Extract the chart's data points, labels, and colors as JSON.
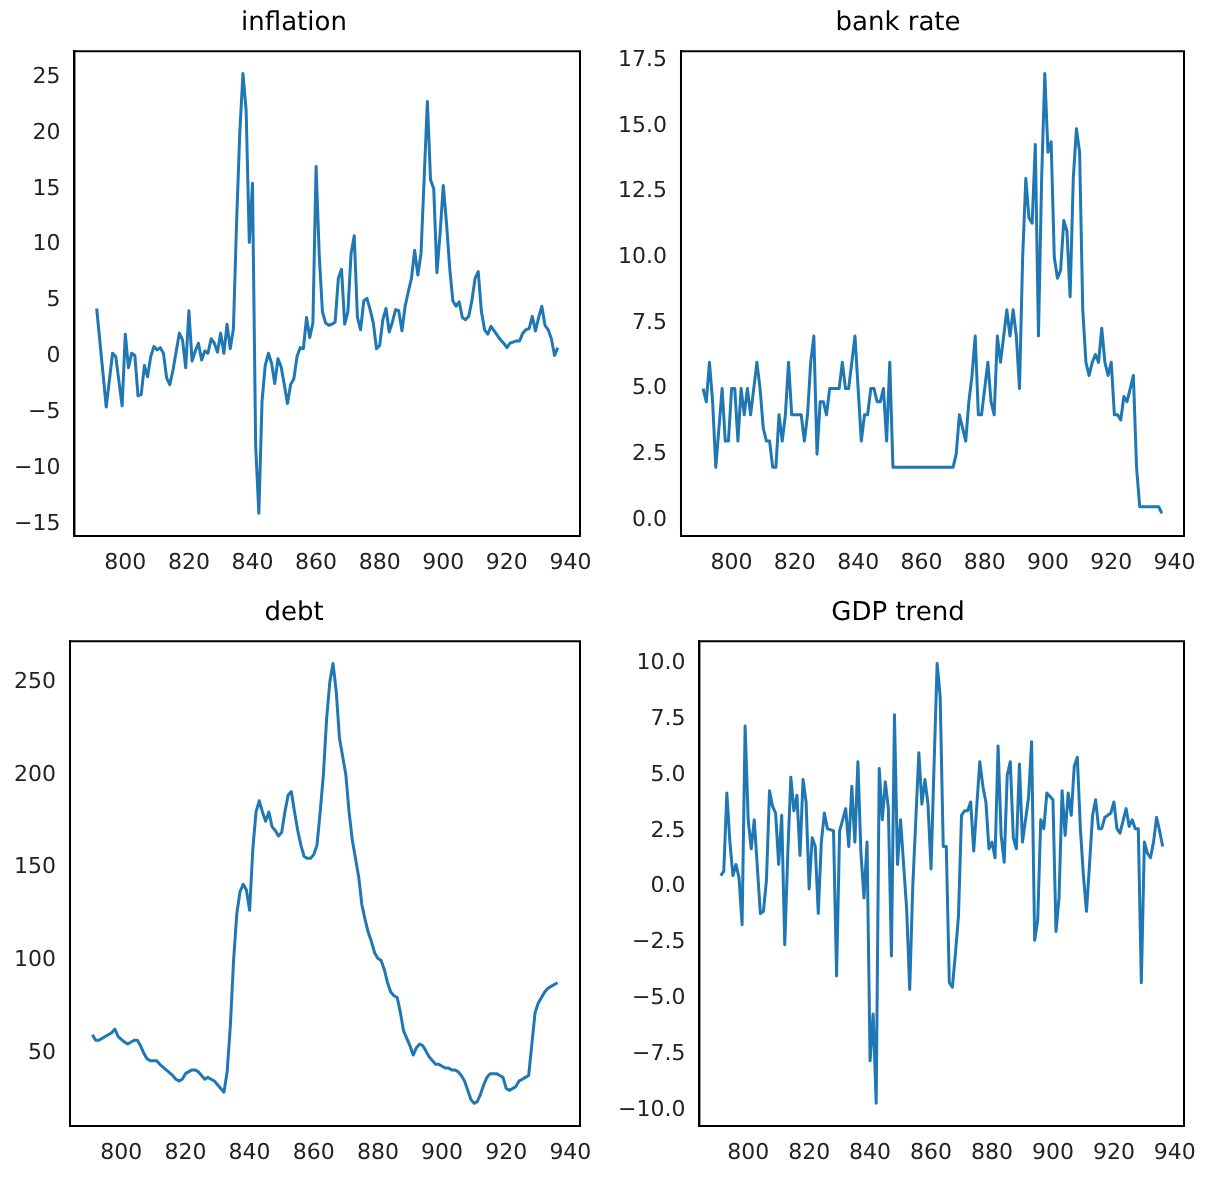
{
  "chart_data": [
    {
      "type": "line",
      "title": "inflation",
      "color": "#1f77b4",
      "xlim": [
        784,
        943
      ],
      "ylim": [
        -16,
        27.3
      ],
      "xticks": [
        800,
        820,
        840,
        860,
        880,
        900,
        920,
        940
      ],
      "yticks": [
        {
          "value": -15,
          "label": "−15"
        },
        {
          "value": -10,
          "label": "−10"
        },
        {
          "value": -5,
          "label": "−5"
        },
        0,
        5,
        10,
        15,
        20,
        25
      ],
      "x": [
        791,
        794,
        796,
        797,
        799,
        800,
        801,
        802,
        803,
        804,
        805,
        806,
        807,
        808,
        809,
        810,
        811,
        812,
        813,
        814,
        815,
        817,
        818,
        819,
        820,
        821,
        822,
        823,
        824,
        825,
        826,
        827,
        828,
        829,
        830,
        831,
        832,
        833,
        834,
        835,
        836,
        837,
        838,
        839,
        840,
        841,
        842,
        843,
        844,
        845,
        846,
        847,
        848,
        849,
        850,
        851,
        852,
        853,
        854,
        855,
        856,
        857,
        858,
        859,
        860,
        861,
        862,
        863,
        864,
        865,
        866,
        867,
        868,
        869,
        870,
        871,
        872,
        873,
        874,
        875,
        876,
        877,
        878,
        879,
        880,
        881,
        882,
        883,
        884,
        885,
        886,
        887,
        888,
        889,
        890,
        891,
        892,
        893,
        894,
        895,
        896,
        897,
        898,
        899,
        900,
        901,
        902,
        903,
        904,
        905,
        906,
        907,
        908,
        909,
        910,
        911,
        912,
        913,
        914,
        915,
        916,
        917,
        918,
        919,
        920,
        921,
        922,
        923,
        924,
        925,
        926,
        927,
        928,
        929,
        930,
        931,
        932,
        933,
        934,
        935,
        936
      ],
      "values": [
        4.3,
        -4.5,
        0.3,
        0,
        -4.4,
        2,
        -1,
        0.3,
        0.1,
        -3.5,
        -3.4,
        -0.8,
        -1.8,
        0,
        0.9,
        0.6,
        0.8,
        0.3,
        -1.9,
        -2.5,
        -1.2,
        2.1,
        1.5,
        -1,
        4.1,
        -0.4,
        0.5,
        1.2,
        -0.3,
        0.5,
        0.3,
        1.6,
        1.2,
        0.4,
        2.1,
        0.3,
        2.9,
        0.7,
        2.5,
        12,
        20,
        25.3,
        22,
        10.2,
        15.5,
        -8,
        -14,
        -4,
        -0.8,
        0.3,
        -0.6,
        -2.4,
        -0.2,
        -0.9,
        -2.5,
        -4.2,
        -2.5,
        -2,
        0,
        0.8,
        0.7,
        3.5,
        1.7,
        3,
        17,
        9,
        4,
        3,
        2.8,
        2.9,
        3.1,
        7,
        7.8,
        2.9,
        4,
        9.2,
        10.8,
        3.5,
        2.4,
        5,
        5.2,
        4.2,
        3,
        0.7,
        1,
        3.3,
        4.3,
        2.2,
        3.1,
        4.2,
        4.1,
        2.3,
        4.5,
        5.8,
        7,
        9.5,
        7.3,
        9.2,
        16,
        22.8,
        15.8,
        15,
        7.5,
        11,
        15.3,
        12,
        8,
        5,
        4.5,
        4.9,
        3.5,
        3.3,
        3.6,
        5,
        7,
        7.6,
        4,
        2.4,
        2,
        2.7,
        2.3,
        1.9,
        1.5,
        1.2,
        0.8,
        1.2,
        1.3,
        1.4,
        1.4,
        2.1,
        2.4,
        2.5,
        3.6,
        2.3,
        3.5,
        4.5,
        2.8,
        2.4,
        1.6,
        0.1,
        0.8
      ]
    },
    {
      "type": "line",
      "title": "bank rate",
      "color": "#1f77b4",
      "xlim": [
        784,
        943
      ],
      "ylim": [
        -0.6,
        17.85
      ],
      "xticks": [
        800,
        820,
        840,
        860,
        880,
        900,
        920,
        940
      ],
      "yticks": [
        {
          "value": 0,
          "label": "0.0"
        },
        {
          "value": 2.5,
          "label": "2.5"
        },
        {
          "value": 5,
          "label": "5.0"
        },
        {
          "value": 7.5,
          "label": "7.5"
        },
        {
          "value": 10,
          "label": "10.0"
        },
        {
          "value": 12.5,
          "label": "12.5"
        },
        {
          "value": 15,
          "label": "15.0"
        },
        {
          "value": 17.5,
          "label": "17.5"
        }
      ],
      "x": [
        791,
        792,
        793,
        794,
        795,
        797,
        798,
        799,
        800,
        801,
        802,
        803,
        804,
        805,
        806,
        807,
        808,
        809,
        810,
        811,
        812,
        813,
        814,
        815,
        816,
        817,
        818,
        819,
        820,
        821,
        822,
        823,
        824,
        825,
        826,
        827,
        828,
        829,
        830,
        831,
        832,
        833,
        834,
        835,
        836,
        837,
        838,
        839,
        840,
        841,
        842,
        843,
        844,
        845,
        846,
        847,
        848,
        849,
        850,
        851,
        870,
        871,
        872,
        873,
        874,
        875,
        876,
        877,
        878,
        879,
        880,
        881,
        882,
        883,
        884,
        885,
        886,
        887,
        888,
        889,
        890,
        891,
        892,
        893,
        894,
        895,
        896,
        897,
        898,
        899,
        900,
        901,
        902,
        903,
        904,
        905,
        906,
        907,
        908,
        909,
        910,
        911,
        912,
        913,
        914,
        915,
        916,
        917,
        918,
        919,
        920,
        921,
        922,
        923,
        924,
        925,
        926,
        927,
        928,
        929,
        935,
        936
      ],
      "values": [
        5,
        4.5,
        6,
        4.5,
        2,
        5,
        3,
        3,
        5,
        5,
        3,
        5,
        4,
        5,
        4,
        5,
        6,
        5,
        3.5,
        3,
        3,
        2,
        2,
        4,
        3,
        4,
        6,
        4,
        4,
        4,
        4,
        3,
        4,
        6,
        7,
        2.5,
        4.5,
        4.5,
        4,
        5,
        5,
        5,
        5,
        6,
        5,
        5,
        6,
        7,
        5,
        3,
        4,
        4,
        5,
        5,
        4.5,
        4.5,
        5,
        3,
        6,
        2,
        2,
        2.5,
        4,
        3.5,
        3,
        4.5,
        5.5,
        7,
        4,
        4,
        5,
        6,
        4.5,
        4,
        7,
        6,
        7,
        8,
        7,
        8,
        7,
        5,
        10,
        13,
        11.5,
        11.3,
        14.3,
        7,
        13,
        17,
        14,
        14.4,
        10,
        9.2,
        9.5,
        11.4,
        11,
        8.5,
        13,
        14.9,
        14,
        8,
        6,
        5.5,
        6,
        6.3,
        6,
        7.3,
        6,
        5.5,
        6,
        4,
        4,
        3.8,
        4.7,
        4.5,
        5,
        5.5,
        2,
        0.5,
        0.5,
        0.25
      ]
    },
    {
      "type": "line",
      "title": "debt",
      "color": "#1f77b4",
      "xlim": [
        784,
        943
      ],
      "ylim": [
        11,
        272
      ],
      "xticks": [
        800,
        820,
        840,
        860,
        880,
        900,
        920,
        940
      ],
      "yticks": [
        50,
        100,
        150,
        200,
        250
      ],
      "x": [
        791,
        792,
        793,
        795,
        797,
        798,
        799,
        801,
        802,
        804,
        805,
        806,
        807,
        808,
        809,
        811,
        812,
        814,
        816,
        817,
        818,
        819,
        820,
        822,
        823,
        824,
        825,
        826,
        827,
        828,
        829,
        830,
        831,
        832,
        833,
        834,
        835,
        836,
        837,
        838,
        839,
        840,
        841,
        842,
        843,
        844,
        845,
        846,
        847,
        848,
        849,
        850,
        851,
        852,
        853,
        854,
        855,
        856,
        857,
        858,
        859,
        860,
        861,
        862,
        863,
        864,
        865,
        866,
        867,
        868,
        869,
        870,
        871,
        872,
        873,
        874,
        875,
        876,
        877,
        878,
        879,
        880,
        881,
        882,
        883,
        884,
        885,
        886,
        887,
        888,
        889,
        890,
        891,
        892,
        893,
        894,
        895,
        896,
        897,
        898,
        899,
        900,
        901,
        902,
        903,
        904,
        905,
        906,
        907,
        908,
        909,
        910,
        911,
        912,
        913,
        914,
        915,
        916,
        917,
        918,
        919,
        920,
        921,
        922,
        923,
        924,
        925,
        926,
        927,
        928,
        929,
        930,
        931,
        932,
        933,
        934,
        935,
        936
      ],
      "values": [
        60,
        57,
        57,
        59,
        61,
        63,
        59,
        56,
        55,
        57,
        57,
        54,
        50,
        47,
        46,
        46,
        44,
        41,
        38,
        36,
        35,
        36,
        39,
        41,
        41,
        40,
        38,
        36,
        37,
        36,
        35,
        33,
        31,
        29,
        40,
        65,
        100,
        125,
        137,
        141,
        138,
        127,
        160,
        180,
        186,
        180,
        175,
        180,
        172,
        170,
        167,
        169,
        180,
        189,
        191,
        180,
        170,
        162,
        156,
        155,
        155,
        157,
        162,
        180,
        200,
        230,
        250,
        260,
        245,
        220,
        210,
        200,
        180,
        165,
        155,
        145,
        130,
        122,
        115,
        110,
        104,
        101,
        100,
        95,
        88,
        83,
        81,
        80,
        72,
        62,
        58,
        54,
        49,
        53,
        55,
        54,
        51,
        48,
        46,
        44,
        44,
        43,
        42,
        42,
        41,
        41,
        40,
        38,
        35,
        30,
        25,
        23,
        24,
        28,
        33,
        37,
        39,
        39,
        39,
        38,
        37,
        31,
        30,
        31,
        32,
        35,
        36,
        37,
        38,
        55,
        72,
        77,
        80,
        83,
        85,
        86,
        87,
        88
      ]
    },
    {
      "type": "line",
      "title": "GDP trend",
      "color": "#1f77b4",
      "xlim": [
        784,
        943
      ],
      "ylim": [
        -10.7,
        11
      ],
      "xticks": [
        800,
        820,
        840,
        860,
        880,
        900,
        920,
        940
      ],
      "yticks": [
        {
          "value": -10,
          "label": "−10.0"
        },
        {
          "value": -7.5,
          "label": "−7.5"
        },
        {
          "value": -5,
          "label": "−5.0"
        },
        {
          "value": -2.5,
          "label": "−2.5"
        },
        {
          "value": 0,
          "label": "0.0"
        },
        {
          "value": 2.5,
          "label": "2.5"
        },
        {
          "value": 5,
          "label": "5.0"
        },
        {
          "value": 7.5,
          "label": "7.5"
        },
        {
          "value": 10,
          "label": "10.0"
        }
      ],
      "x": [
        791,
        792,
        793,
        794,
        795,
        796,
        797,
        798,
        799,
        800,
        801,
        802,
        804,
        805,
        806,
        807,
        808,
        809,
        810,
        811,
        812,
        813,
        814,
        815,
        816,
        817,
        818,
        819,
        820,
        821,
        822,
        823,
        824,
        825,
        826,
        828,
        829,
        830,
        831,
        832,
        833,
        834,
        835,
        836,
        837,
        838,
        839,
        840,
        841,
        842,
        843,
        844,
        845,
        846,
        847,
        848,
        849,
        850,
        852,
        853,
        854,
        855,
        856,
        857,
        858,
        859,
        860,
        861,
        862,
        863,
        864,
        865,
        866,
        867,
        868,
        869,
        870,
        871,
        872,
        873,
        874,
        876,
        877,
        878,
        879,
        880,
        881,
        882,
        883,
        884,
        885,
        886,
        887,
        888,
        889,
        890,
        891,
        892,
        893,
        894,
        895,
        896,
        897,
        898,
        900,
        901,
        902,
        903,
        904,
        905,
        906,
        907,
        908,
        909,
        910,
        911,
        912,
        913,
        914,
        915,
        916,
        917,
        918,
        919,
        920,
        921,
        922,
        924,
        925,
        926,
        927,
        928,
        929,
        930,
        931,
        932,
        933,
        934,
        935,
        936
      ],
      "values": [
        0.5,
        0.7,
        4.2,
        2,
        0.5,
        1,
        0.4,
        -1.7,
        7.2,
        3,
        1.7,
        3,
        -1.2,
        -1.1,
        0.3,
        4.3,
        3.6,
        3.3,
        1,
        3.2,
        -2.6,
        1.5,
        4.9,
        3.4,
        4.1,
        1.4,
        4.8,
        3.8,
        -0.1,
        2.2,
        1.8,
        -1.2,
        2,
        3.3,
        2.6,
        2.5,
        -4,
        2.5,
        3,
        3.5,
        1.8,
        4.5,
        2,
        5.6,
        1.5,
        -0.5,
        2,
        -7.8,
        -5.7,
        -9.7,
        5.3,
        3,
        4.7,
        3.5,
        -3.1,
        7.7,
        1,
        3,
        -1,
        -4.6,
        0,
        3,
        6,
        3.7,
        4.8,
        3.7,
        0.8,
        5.5,
        10,
        8.5,
        1.8,
        1.8,
        -4.3,
        -4.5,
        -3,
        -1.3,
        3.2,
        3.4,
        3.4,
        3.8,
        1.6,
        5.6,
        4.5,
        3.8,
        1.7,
        2,
        1.3,
        6.3,
        2.3,
        1.1,
        5,
        5.6,
        2.2,
        1.7,
        5.5,
        2,
        3,
        4,
        6.5,
        -2.4,
        -1.5,
        3,
        2.6,
        4.2,
        3.9,
        -2,
        -0.5,
        4.3,
        2.3,
        4.2,
        3.2,
        5.4,
        5.8,
        2.6,
        0.5,
        -1.1,
        1,
        3.2,
        3.9,
        2.6,
        2.6,
        3.1,
        3.2,
        3.3,
        3.8,
        2.6,
        2.4,
        3.5,
        2.7,
        3,
        2.6,
        2.6,
        -4.3,
        2,
        1.5,
        1.3,
        2,
        3.1,
        2.5,
        1.8
      ]
    }
  ]
}
